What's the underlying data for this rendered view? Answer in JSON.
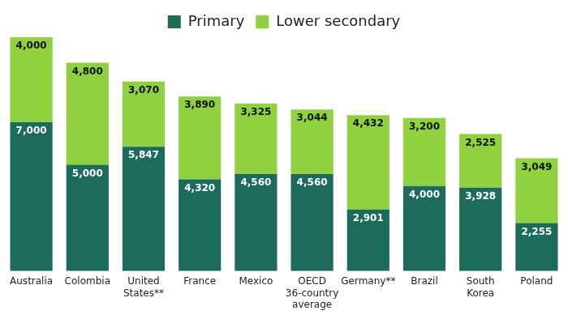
{
  "chart_data": {
    "type": "bar",
    "stacked": true,
    "categories": [
      "Australia",
      "Colombia",
      "United States**",
      "France",
      "Mexico",
      "OECD 36-country average",
      "Germany**",
      "Brazil",
      "South Korea",
      "Poland"
    ],
    "series": [
      {
        "name": "Primary",
        "color": "#1d6b5a",
        "values": [
          7000,
          5000,
          5847,
          4320,
          4560,
          4560,
          2901,
          4000,
          3928,
          2255
        ],
        "value_labels": [
          "7,000",
          "5,000",
          "5,847",
          "4,320",
          "4,560",
          "4,560",
          "2,901",
          "4,000",
          "3,928",
          "2,255"
        ]
      },
      {
        "name": "Lower secondary",
        "color": "#8fd13f",
        "values": [
          4000,
          4800,
          3070,
          3890,
          3325,
          3044,
          4432,
          3200,
          2525,
          3049
        ],
        "value_labels": [
          "4,000",
          "4,800",
          "3,070",
          "3,890",
          "3,325",
          "3,044",
          "4,432",
          "3,200",
          "2,525",
          "3,049"
        ]
      }
    ],
    "ylim": [
      0,
      11000
    ],
    "grid": false,
    "legend": "top",
    "data_labels": true,
    "tick_labels": "x"
  }
}
